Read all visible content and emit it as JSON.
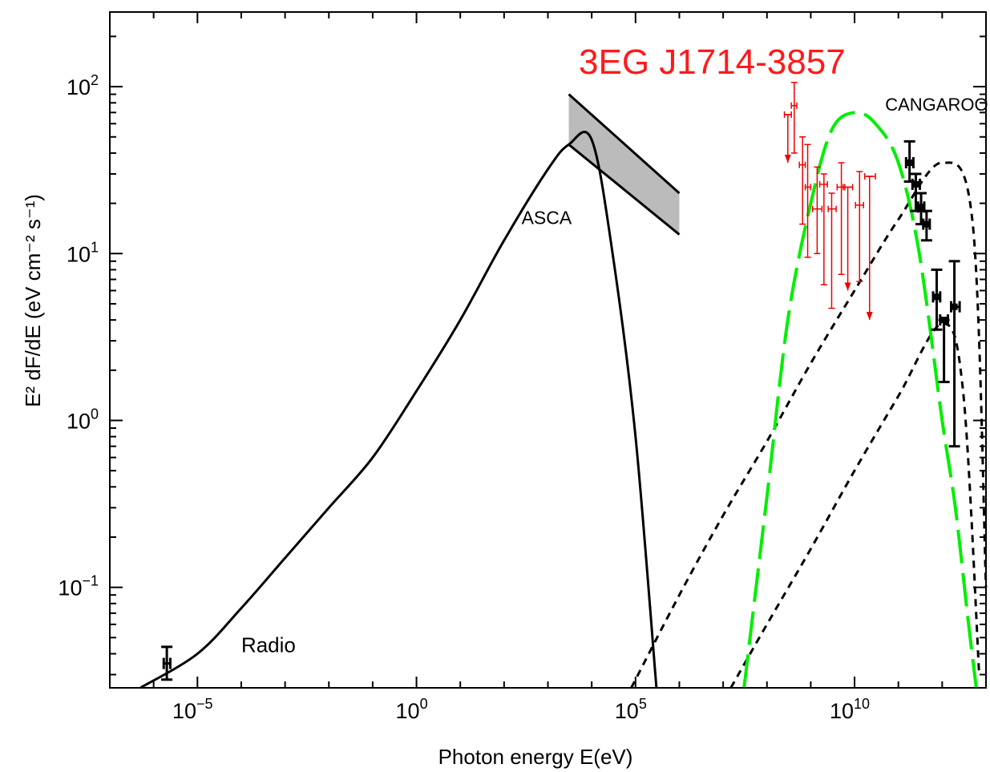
{
  "chart_data": {
    "type": "scatter",
    "title": "3EG J1714-3857",
    "title_color": "#ff1a1a",
    "xlabel": "Photon energy  E(eV)",
    "ylabel": "E² dF/dE (eV cm⁻² s⁻¹)",
    "x_scale": "log",
    "y_scale": "log",
    "xlim": [
      1e-07,
      10000000000000.0
    ],
    "ylim": [
      0.025,
      280
    ],
    "grid": false,
    "x_ticks": [
      {
        "value": 1e-05,
        "base": "10",
        "exp": "−5"
      },
      {
        "value": 1,
        "base": "10",
        "exp": "0"
      },
      {
        "value": 100000.0,
        "base": "10",
        "exp": "5"
      },
      {
        "value": 10000000000.0,
        "base": "10",
        "exp": "10"
      }
    ],
    "y_ticks": [
      {
        "value": 0.1,
        "base": "10",
        "exp": "−1"
      },
      {
        "value": 1,
        "base": "10",
        "exp": "0"
      },
      {
        "value": 10,
        "base": "10",
        "exp": "1"
      },
      {
        "value": 100,
        "base": "10",
        "exp": "2"
      }
    ],
    "annotations": [
      {
        "text": "Radio",
        "x": 0.0001,
        "y": 0.041
      },
      {
        "text": "ASCA",
        "x": 250,
        "y": 15
      },
      {
        "text": "CANGAROO",
        "x": 50000000000.0,
        "y": 72
      }
    ],
    "series": [
      {
        "role": "synchrotron-model",
        "style": "solid",
        "color": "#000000",
        "x": [
          5e-07,
          1e-05,
          0.0001,
          0.001,
          0.01,
          0.1,
          1,
          10,
          100,
          1000,
          3000,
          10000,
          30000,
          100000,
          300000
        ],
        "y": [
          0.025,
          0.04,
          0.075,
          0.15,
          0.3,
          0.6,
          1.5,
          4,
          12,
          32,
          45,
          48,
          10,
          0.8,
          0.025
        ]
      },
      {
        "role": "ic-model-upper",
        "style": "dashed",
        "color": "#000000",
        "x": [
          80000,
          1000000.0,
          10000000.0,
          100000000.0,
          1000000000.0,
          10000000000.0,
          100000000000.0,
          1000000000000.0,
          5000000000000.0,
          10000000000000.0
        ],
        "y": [
          0.025,
          0.09,
          0.27,
          0.75,
          2.2,
          6,
          16,
          35,
          15,
          0.1
        ]
      },
      {
        "role": "ic-model-lower",
        "style": "dashed",
        "color": "#000000",
        "x": [
          15000000.0,
          100000000.0,
          1000000000.0,
          10000000000.0,
          100000000000.0,
          1000000000000.0,
          3000000000000.0,
          7000000000000.0
        ],
        "y": [
          0.025,
          0.06,
          0.17,
          0.5,
          1.4,
          3.8,
          1.5,
          0.03
        ]
      },
      {
        "role": "pion-decay-model",
        "style": "long-dashed",
        "color": "#00ee00",
        "x": [
          30000000.0,
          100000000.0,
          300000000.0,
          1000000000.0,
          3000000000.0,
          10000000000.0,
          30000000000.0,
          100000000000.0,
          300000000000.0,
          1000000000000.0,
          2000000000000.0,
          4000000000000.0,
          6000000000000.0
        ],
        "y": [
          0.025,
          0.35,
          4,
          20,
          55,
          70,
          60,
          35,
          10,
          1,
          0.3,
          0.06,
          0.025
        ]
      },
      {
        "role": "egret-data",
        "style": "points",
        "color": "#ee0000",
        "points": [
          {
            "x": 300000000.0,
            "y": 68,
            "xlo": 250000000.0,
            "xhi": 360000000.0,
            "ylo": 35,
            "yhi": 68,
            "upper_limit": true
          },
          {
            "x": 420000000.0,
            "y": 77,
            "xlo": 360000000.0,
            "xhi": 480000000.0,
            "ylo": 40,
            "yhi": 106
          },
          {
            "x": 650000000.0,
            "y": 34,
            "xlo": 550000000.0,
            "xhi": 750000000.0,
            "ylo": 15,
            "yhi": 50
          },
          {
            "x": 850000000.0,
            "y": 25,
            "xlo": 750000000.0,
            "xhi": 1000000000.0,
            "ylo": 9.5,
            "yhi": 45
          },
          {
            "x": 1400000000.0,
            "y": 18.5,
            "xlo": 1100000000.0,
            "xhi": 1800000000.0,
            "ylo": 10,
            "yhi": 33
          },
          {
            "x": 2000000000.0,
            "y": 26,
            "xlo": 1600000000.0,
            "xhi": 2400000000.0,
            "ylo": 6.5,
            "yhi": 30
          },
          {
            "x": 3000000000.0,
            "y": 18.5,
            "xlo": 2500000000.0,
            "xhi": 3800000000.0,
            "ylo": 4.7,
            "yhi": 23
          },
          {
            "x": 5000000000.0,
            "y": 25,
            "xlo": 4000000000.0,
            "xhi": 6000000000.0,
            "ylo": 7.5,
            "yhi": 35
          },
          {
            "x": 7000000000.0,
            "y": 25,
            "xlo": 5500000000.0,
            "xhi": 9000000000.0,
            "ylo": 6,
            "yhi": 25,
            "upper_limit": true
          },
          {
            "x": 13000000000.0,
            "y": 19.5,
            "xlo": 10500000000.0,
            "xhi": 16000000000.0,
            "ylo": 6.8,
            "yhi": 31
          },
          {
            "x": 22000000000.0,
            "y": 29,
            "xlo": 17000000000.0,
            "xhi": 30000000000.0,
            "ylo": 4,
            "yhi": 29,
            "upper_limit": true
          }
        ]
      },
      {
        "role": "cangaroo-data",
        "style": "points",
        "color": "#000000",
        "points": [
          {
            "x": 180000000000.0,
            "y": 35,
            "xlo": 150000000000.0,
            "xhi": 220000000000.0,
            "ylo": 27,
            "yhi": 47
          },
          {
            "x": 250000000000.0,
            "y": 26,
            "xlo": 210000000000.0,
            "xhi": 310000000000.0,
            "ylo": 18,
            "yhi": 30
          },
          {
            "x": 330000000000.0,
            "y": 19,
            "xlo": 280000000000.0,
            "xhi": 390000000000.0,
            "ylo": 15,
            "yhi": 23
          },
          {
            "x": 440000000000.0,
            "y": 15,
            "xlo": 370000000000.0,
            "xhi": 520000000000.0,
            "ylo": 12,
            "yhi": 18
          },
          {
            "x": 750000000000.0,
            "y": 5.5,
            "xlo": 620000000000.0,
            "xhi": 900000000000.0,
            "ylo": 3.5,
            "yhi": 8
          },
          {
            "x": 1100000000000.0,
            "y": 4,
            "xlo": 900000000000.0,
            "xhi": 1350000000000.0,
            "ylo": 1.7,
            "yhi": 4
          },
          {
            "x": 1900000000000.0,
            "y": 4.8,
            "xlo": 1600000000000.0,
            "xhi": 2500000000000.0,
            "ylo": 0.7,
            "yhi": 9
          }
        ]
      },
      {
        "role": "radio-data",
        "style": "points",
        "color": "#000000",
        "points": [
          {
            "x": 2e-06,
            "y": 0.035,
            "xlo": 1.7e-06,
            "xhi": 2.4e-06,
            "ylo": 0.028,
            "yhi": 0.044
          }
        ]
      }
    ],
    "asca_bowtie": {
      "color": "#bbbbbb",
      "x": [
        3000,
        1000000
      ],
      "upper_y": [
        90,
        23
      ],
      "lower_y": [
        45,
        13
      ]
    }
  }
}
